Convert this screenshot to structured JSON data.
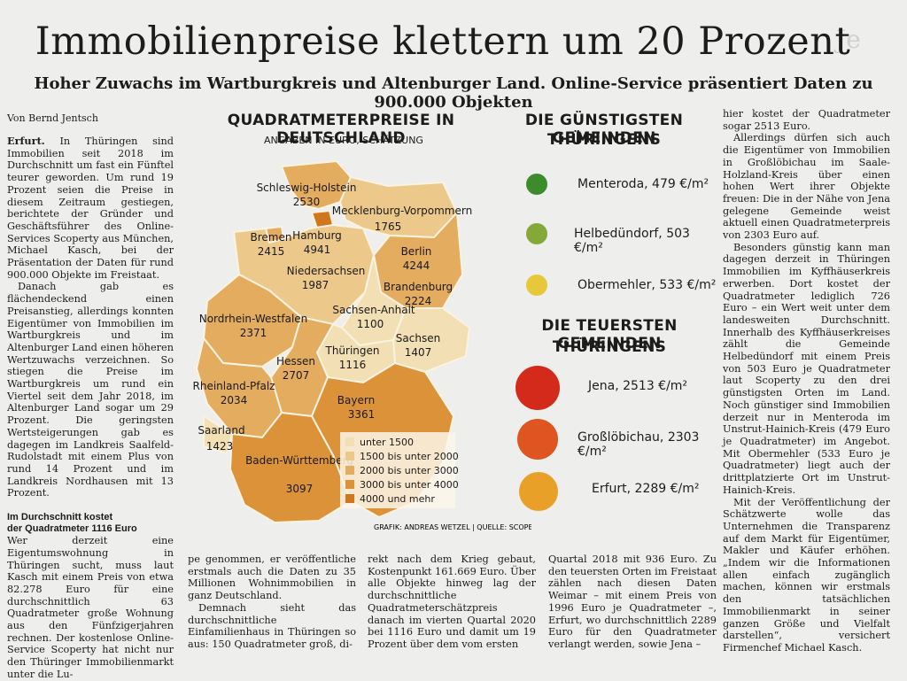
{
  "headline": "Immobilienpreise klettern um 20 Prozent",
  "subheadline": "Hoher Zuwachs im Wartburgkreis und Altenburger Land. Online-Service präsentiert Daten zu 900.000 Objekten",
  "byline": "Von Bernd Jentsch",
  "article": {
    "col1_lead": "Erfurt.",
    "col1_p1": "In Thüringen sind Immobilien seit 2018 im Durchschnitt um fast ein Fünftel teurer geworden. Um rund 19 Prozent seien die Preise in diesem Zeitraum gestiegen, berichtete der Gründer und Geschäftsführer des Online-Services Scoperty aus München, Michael Kasch, bei der Präsentation der Daten für rund 900.000 Objekte im Freistaat.",
    "col1_p2": "Danach gab es flächendeckend einen Preisanstieg, allerdings konnten Eigentümer von Immobilien im Wartburgkreis und im Altenburger Land einen höheren Wertzuwachs verzeichnen. So stiegen die Preise im Wartburgkreis um rund ein Viertel seit dem Jahr 2018, im Altenburger Land sogar um 29 Prozent. Die geringsten Wertsteigerungen gab es dagegen im Landkreis Saalfeld-Rudolstadt mit einem Plus von rund 14 Prozent und im Landkreis Nordhausen mit 13 Prozent.",
    "col1_sub1": "Im Durchschnitt kostet",
    "col1_sub2": "der Quadratmeter 1116 Euro",
    "col1_p3": "Wer derzeit eine Eigentumswohnung in Thüringen sucht, muss laut Kasch mit einem Preis von etwa 82.278 Euro für eine durchschnittlich 63 Quadratmeter große Wohnung aus den Fünfzigerjahren rechnen. Der kostenlose Online-Service Scoperty hat nicht nur den Thüringer Immobilienmarkt unter die Lu-",
    "col2_p1": "pe genommen, er veröffentliche erstmals auch die Daten zu 35 Millionen Wohnimmobilien in ganz Deutschland.",
    "col2_p2": "Demnach sieht das durchschnittliche Einfamilienhaus in Thüringen so aus: 150 Quadratmeter groß, di-",
    "col3_p1": "rekt nach dem Krieg gebaut, Kostenpunkt 161.669 Euro. Über alle Objekte hinweg lag der durchschnittliche Quadratmeterschätzpreis danach im vierten Quartal 2020 bei 1116 Euro und damit um 19 Prozent über dem vom ersten",
    "col3c_p1": "Quartal 2018 mit 936 Euro. Zu den teuersten Orten im Freistaat zählen nach diesen Daten Weimar – mit einem Preis von 1996 Euro je Quadratmeter –, Erfurt, wo durchschnittlich 2289 Euro für den Quadratmeter verlangt werden, sowie Jena –",
    "col4_p1": "hier kostet der Quadratmeter sogar 2513 Euro.",
    "col4_p2": "Allerdings dürfen sich auch die Eigentümer von Immobilien in Großlöbichau im Saale-Holzland-Kreis über einen hohen Wert ihrer Objekte freuen: Die in der Nähe von Jena gelegene Gemeinde weist aktuell einen Quadratmeterpreis von 2303 Euro auf.",
    "col4_p3": "Besonders günstig kann man dagegen derzeit in Thüringen Immobilien im Kyffhäuserkreis erwerben. Dort kostet der Quadratmeter lediglich 726 Euro – ein Wert weit unter dem landesweiten Durchschnitt. Innerhalb des Kyffhäuserkreises zählt die Gemeinde Helbedündorf mit einem Preis von 503 Euro je Quadratmeter laut Scoperty zu den drei günstigsten Orten im Land. Noch günstiger sind Immobilien derzeit nur in Menteroda im Unstrut-Hainich-Kreis (479 Euro je Quadratmeter) im Angebot. Mit Obermehler (533 Euro je Quadratmeter) liegt auch der drittplatzierte Ort im Unstrut-Hainich-Kreis.",
    "col4_p4": "Mit der Veröffentlichung der Schätzwerte wolle das Unternehmen die Transparenz auf dem Markt für Eigentümer, Makler und Käufer erhöhen. „Indem wir die Informationen allen einfach zugänglich machen, können wir erstmals den tatsächlichen Immobilienmarkt in seiner ganzen Größe und Vielfalt darstellen“, versichert Firmenchef Michael Kasch."
  },
  "map": {
    "title": "QUADRATMETERPREISE IN DEUTSCHLAND",
    "subtitle": "ANGABEN IN EURO, SCHÄTZUNG",
    "credit": "GRAFIK: ANDREAS WETZEL | QUELLE: SCOPERTY",
    "states": [
      {
        "name": "Schleswig-Holstein",
        "value": "2530",
        "bracket": 2
      },
      {
        "name": "Mecklenburg-Vorpommern",
        "value": "1765",
        "bracket": 1
      },
      {
        "name": "Hamburg",
        "value": "4941",
        "bracket": 4
      },
      {
        "name": "Bremen",
        "value": "2415",
        "bracket": 2
      },
      {
        "name": "Berlin",
        "value": "4244",
        "bracket": 4
      },
      {
        "name": "Niedersachsen",
        "value": "1987",
        "bracket": 1
      },
      {
        "name": "Brandenburg",
        "value": "2224",
        "bracket": 2
      },
      {
        "name": "Sachsen-Anhalt",
        "value": "1100",
        "bracket": 0
      },
      {
        "name": "Nordrhein-Westfalen",
        "value": "2371",
        "bracket": 2
      },
      {
        "name": "Sachsen",
        "value": "1407",
        "bracket": 0
      },
      {
        "name": "Thüringen",
        "value": "1116",
        "bracket": 0
      },
      {
        "name": "Hessen",
        "value": "2707",
        "bracket": 2
      },
      {
        "name": "Rheinland-Pfalz",
        "value": "2034",
        "bracket": 2
      },
      {
        "name": "Bayern",
        "value": "3361",
        "bracket": 3
      },
      {
        "name": "Saarland",
        "value": "1423",
        "bracket": 0
      },
      {
        "name": "Baden-Württemberg",
        "value": "3097",
        "bracket": 3
      }
    ],
    "legend": [
      {
        "label": "unter 1500",
        "color": "#f2dfb3"
      },
      {
        "label": "1500 bis unter 2000",
        "color": "#ecc98a"
      },
      {
        "label": "2000 bis unter 3000",
        "color": "#e4ac5e"
      },
      {
        "label": "3000 bis unter 4000",
        "color": "#dc9238"
      },
      {
        "label": "4000 und mehr",
        "color": "#d0761c"
      }
    ]
  },
  "cheapest": {
    "title_line1": "DIE GÜNSTIGSTEN GEMEINDEN",
    "title_line2": "THÜRINGENS",
    "items": [
      {
        "label": "Menteroda, 479 €/m²",
        "color": "#3c8c2e"
      },
      {
        "label": "Helbedündorf, 503 €/m²",
        "color": "#84a83a"
      },
      {
        "label": "Obermehler, 533 €/m²",
        "color": "#e6c83a"
      }
    ]
  },
  "priciest": {
    "title_line1": "DIE TEUERSTEN GEMEINDEN",
    "title_line2": "THÜRINGENS",
    "items": [
      {
        "label": "Jena, 2513 €/m²",
        "color": "#d42a1c"
      },
      {
        "label": "Großlöbichau, 2303 €/m²",
        "color": "#de5522"
      },
      {
        "label": "Erfurt, 2289 €/m²",
        "color": "#e8a028"
      }
    ]
  }
}
